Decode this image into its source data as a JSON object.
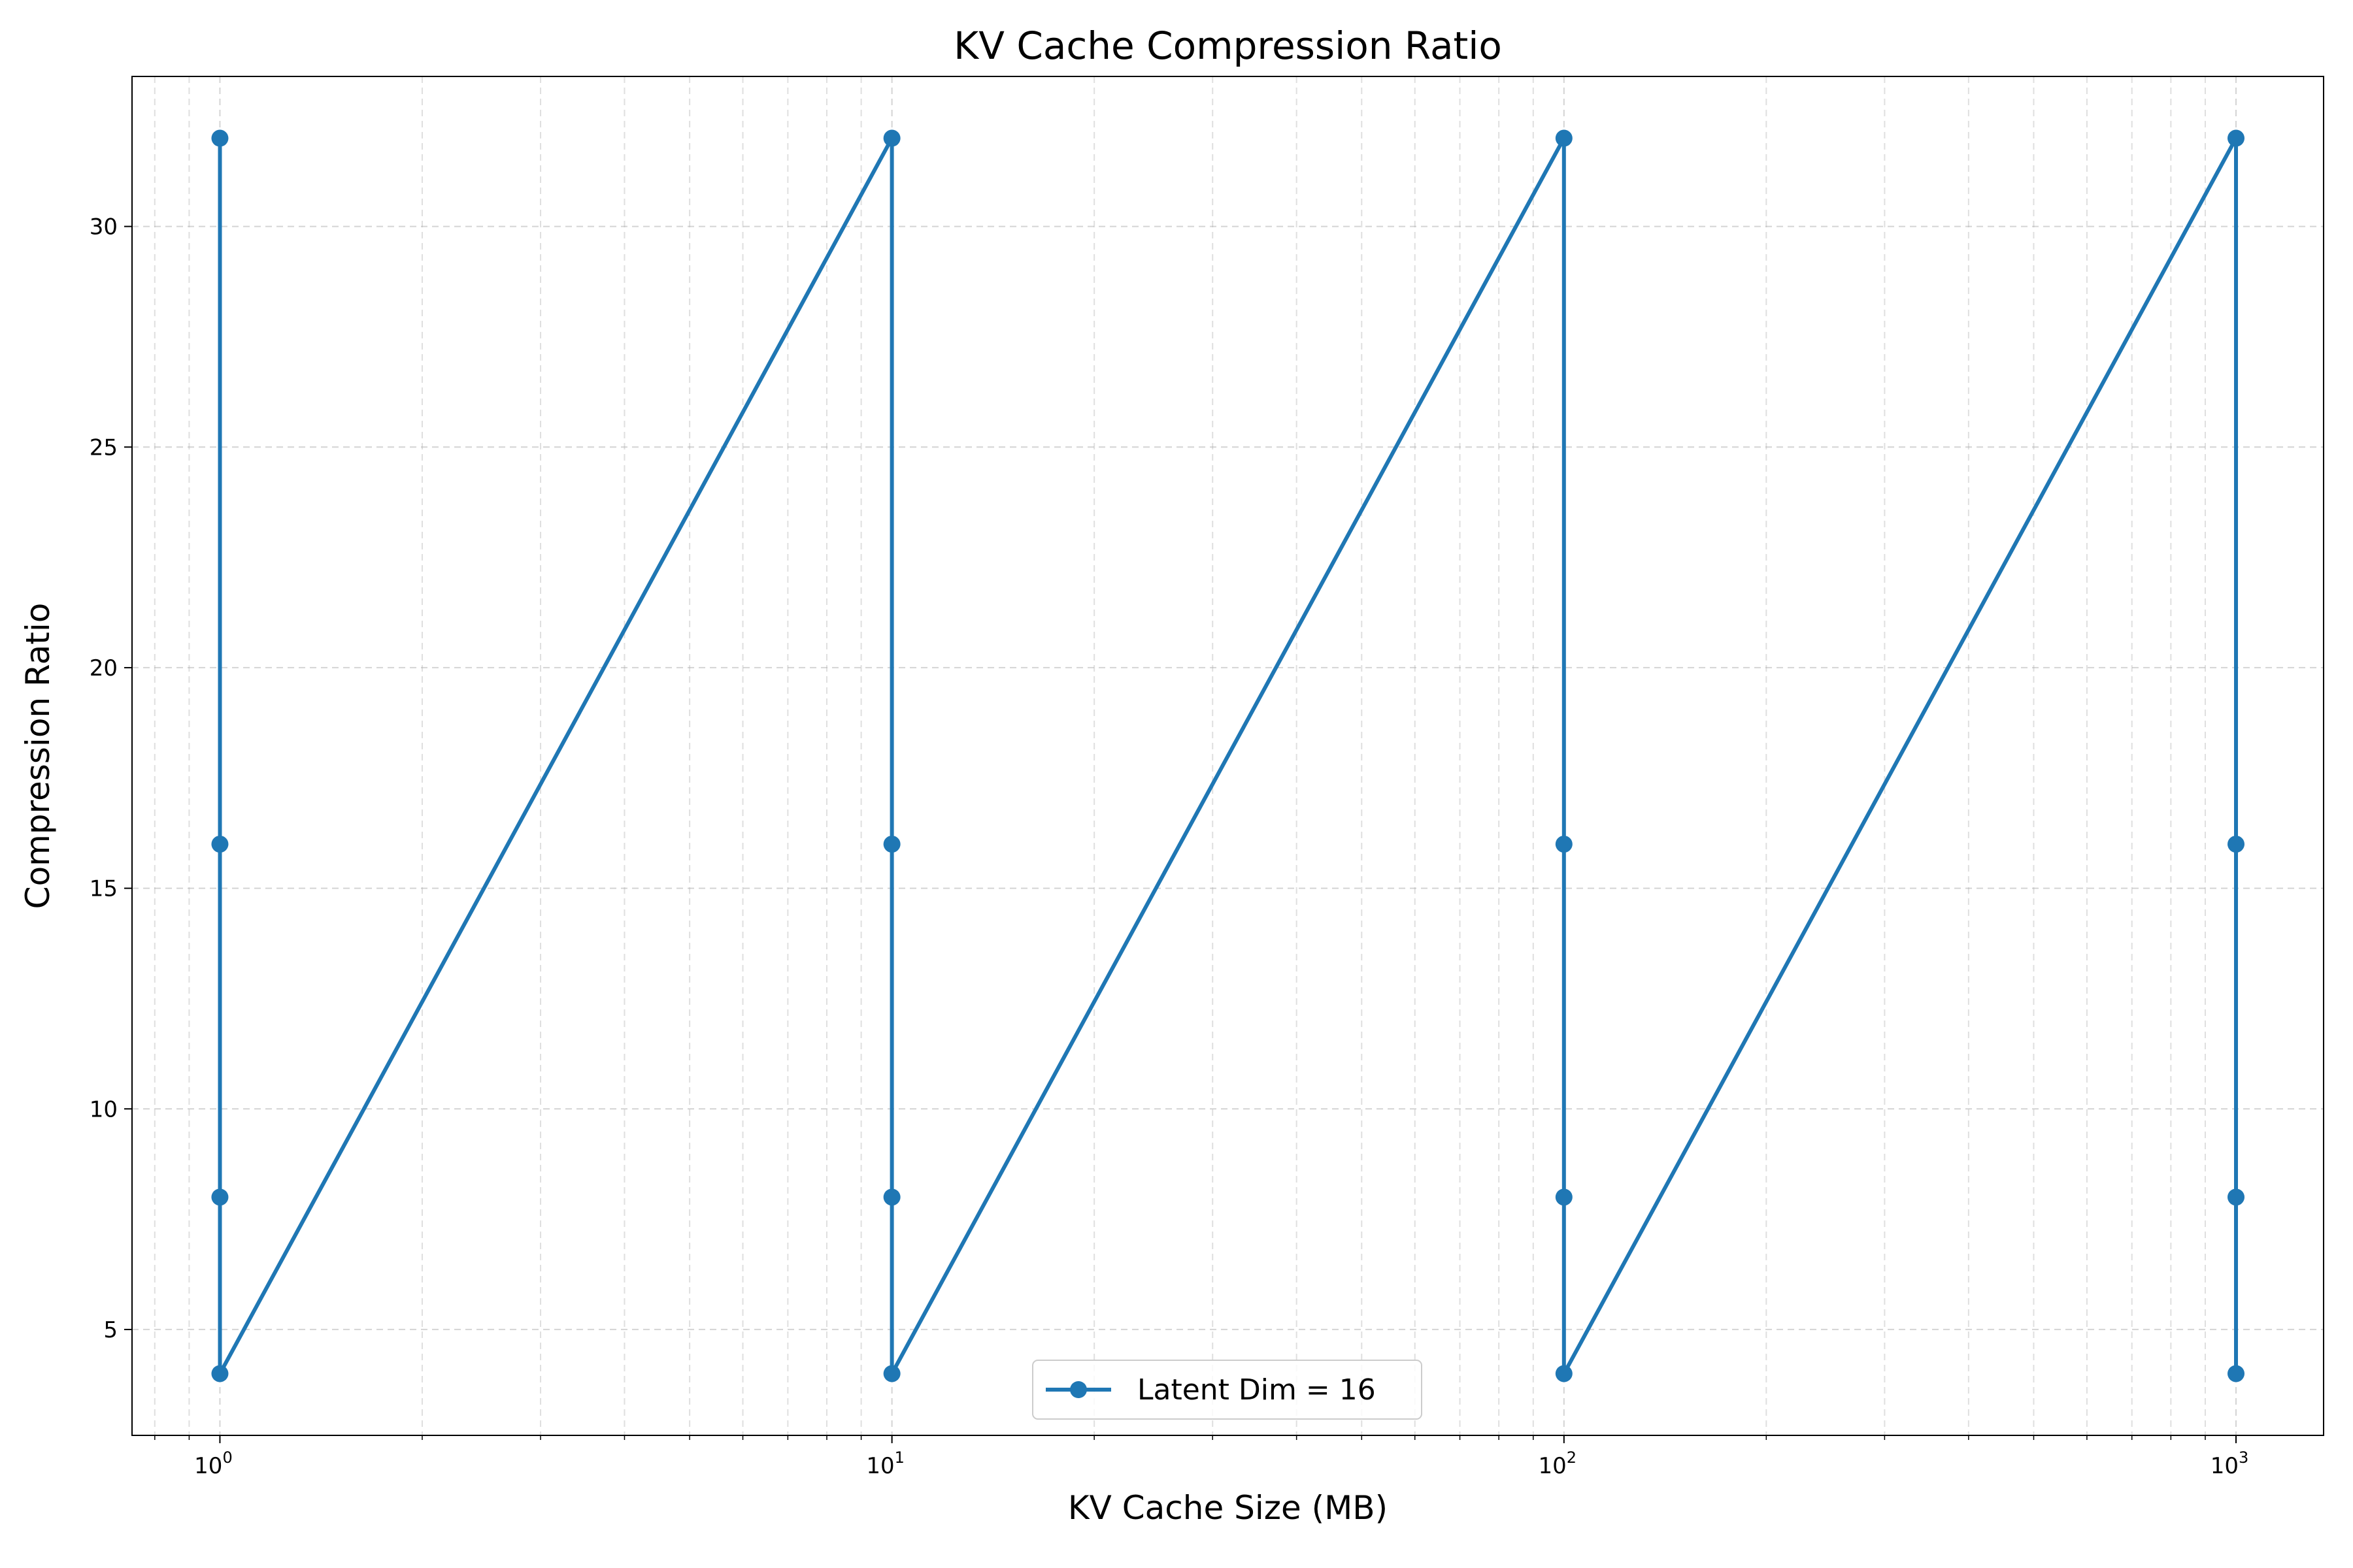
{
  "chart_data": {
    "type": "line",
    "title": "KV Cache Compression Ratio",
    "xlabel": "KV Cache Size (MB)",
    "ylabel": "Compression Ratio",
    "xscale": "log",
    "xlim": [
      0.74,
      1350
    ],
    "ylim": [
      2.6,
      33.4
    ],
    "grid": true,
    "legend_position": "lower center",
    "x_ticks": [
      {
        "value": 1,
        "base": "10",
        "exp": "0"
      },
      {
        "value": 10,
        "base": "10",
        "exp": "1"
      },
      {
        "value": 100,
        "base": "10",
        "exp": "2"
      },
      {
        "value": 1000,
        "base": "10",
        "exp": "3"
      }
    ],
    "y_ticks": [
      5,
      10,
      15,
      20,
      25,
      30
    ],
    "series": [
      {
        "name": "Latent Dim = 16",
        "color": "#1f77b4",
        "marker": "circle",
        "x": [
          1,
          1,
          1,
          1,
          10,
          10,
          10,
          10,
          100,
          100,
          100,
          100,
          1000,
          1000,
          1000,
          1000
        ],
        "y": [
          32,
          16,
          8,
          4,
          32,
          16,
          8,
          4,
          32,
          16,
          8,
          4,
          32,
          16,
          8,
          4
        ]
      }
    ]
  }
}
